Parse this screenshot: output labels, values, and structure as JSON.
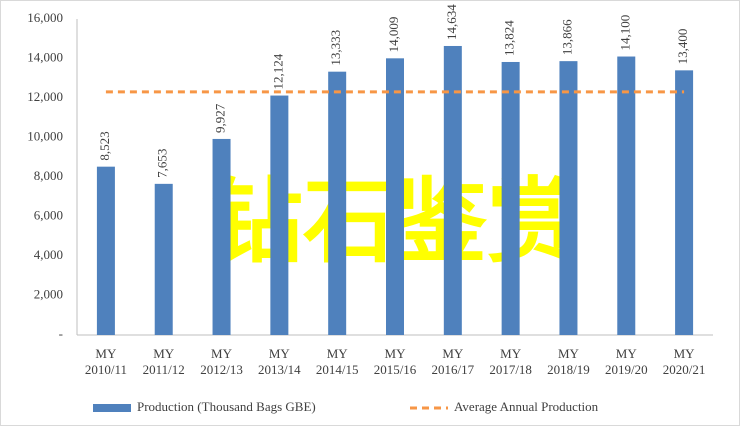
{
  "chart_data": {
    "type": "bar",
    "categories": [
      "MY\n2010/11",
      "MY\n2011/12",
      "MY\n2012/13",
      "MY\n2013/14",
      "MY\n2014/15",
      "MY\n2015/16",
      "MY\n2016/17",
      "MY\n2017/18",
      "MY\n2018/19",
      "MY\n2019/20",
      "MY\n2020/21"
    ],
    "series": [
      {
        "name": "Production (Thousand Bags GBE)",
        "color": "#4f81bd",
        "type": "bar",
        "values": [
          8523,
          7653,
          9927,
          12124,
          13333,
          14009,
          14634,
          13824,
          13866,
          14100,
          13400
        ],
        "value_labels": [
          "8,523",
          "7,653",
          "9,927",
          "12,124",
          "13,333",
          "14,009",
          "14,634",
          "13,824",
          "13,866",
          "14,100",
          "13,400"
        ]
      },
      {
        "name": "Average Annual Production",
        "color": "#f79646",
        "type": "line",
        "values": [
          12309,
          12309,
          12309,
          12309,
          12309,
          12309,
          12309,
          12309,
          12309,
          12309,
          12309
        ]
      }
    ],
    "ylim": [
      0,
      16000
    ],
    "yticks": [
      {
        "value": 0,
        "label": "-"
      },
      {
        "value": 2000,
        "label": "2,000"
      },
      {
        "value": 4000,
        "label": "4,000"
      },
      {
        "value": 6000,
        "label": "6,000"
      },
      {
        "value": 8000,
        "label": "8,000"
      },
      {
        "value": 10000,
        "label": "10,000"
      },
      {
        "value": 12000,
        "label": "12,000"
      },
      {
        "value": 14000,
        "label": "14,000"
      },
      {
        "value": 16000,
        "label": "16,000"
      }
    ],
    "grid": false,
    "legend": "bottom",
    "watermark": "钻石鉴赏"
  }
}
